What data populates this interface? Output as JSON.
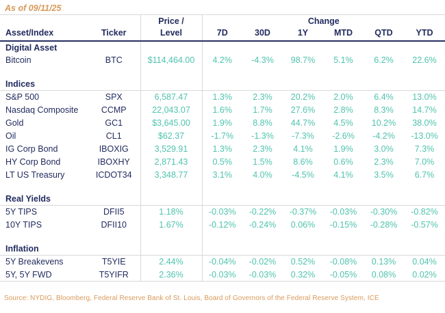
{
  "meta": {
    "as_of": "As of 09/11/25",
    "source": "Source: NYDIG, Bloomberg, Federal Reserve Bank of St. Louis, Board of Governors of the Federal Reserve System, ICE"
  },
  "colors": {
    "navy_text": "#222b5e",
    "teal_value": "#4fc3ae",
    "orange_note": "#d8995a",
    "gridline": "#d8d8d8"
  },
  "table": {
    "headers": {
      "asset": "Asset/Index",
      "ticker": "Ticker",
      "price_line1": "Price /",
      "price_line2": "Level",
      "change": "Change",
      "periods": [
        "7D",
        "30D",
        "1Y",
        "MTD",
        "QTD",
        "YTD"
      ]
    },
    "sections": [
      {
        "label": "Digital Asset",
        "underline": false,
        "rows": [
          {
            "asset": "Bitcoin",
            "ticker": "BTC",
            "price": "$114,464.00",
            "changes": [
              "4.2%",
              "-4.3%",
              "98.7%",
              "5.1%",
              "6.2%",
              "22.6%"
            ]
          }
        ]
      },
      {
        "label": "Indices",
        "underline": true,
        "rows": [
          {
            "asset": "S&P 500",
            "ticker": "SPX",
            "price": "6,587.47",
            "changes": [
              "1.3%",
              "2.3%",
              "20.2%",
              "2.0%",
              "6.4%",
              "13.0%"
            ]
          },
          {
            "asset": "Nasdaq Composite",
            "ticker": "CCMP",
            "price": "22,043.07",
            "changes": [
              "1.6%",
              "1.7%",
              "27.6%",
              "2.8%",
              "8.3%",
              "14.7%"
            ]
          },
          {
            "asset": "Gold",
            "ticker": "GC1",
            "price": "$3,645.00",
            "changes": [
              "1.9%",
              "8.8%",
              "44.7%",
              "4.5%",
              "10.2%",
              "38.0%"
            ]
          },
          {
            "asset": "Oil",
            "ticker": "CL1",
            "price": "$62.37",
            "changes": [
              "-1.7%",
              "-1.3%",
              "-7.3%",
              "-2.6%",
              "-4.2%",
              "-13.0%"
            ]
          },
          {
            "asset": "IG Corp Bond",
            "ticker": "IBOXIG",
            "price": "3,529.91",
            "changes": [
              "1.3%",
              "2.3%",
              "4.1%",
              "1.9%",
              "3.0%",
              "7.3%"
            ]
          },
          {
            "asset": "HY Corp Bond",
            "ticker": "IBOXHY",
            "price": "2,871.43",
            "changes": [
              "0.5%",
              "1.5%",
              "8.6%",
              "0.6%",
              "2.3%",
              "7.0%"
            ]
          },
          {
            "asset": "LT US Treasury",
            "ticker": "ICDOT34",
            "price": "3,348.77",
            "changes": [
              "3.1%",
              "4.0%",
              "-4.5%",
              "4.1%",
              "3.5%",
              "6.7%"
            ]
          }
        ]
      },
      {
        "label": "Real Yields",
        "underline": true,
        "rows": [
          {
            "asset": "5Y TIPS",
            "ticker": "DFII5",
            "price": "1.18%",
            "changes": [
              "-0.03%",
              "-0.22%",
              "-0.37%",
              "-0.03%",
              "-0.30%",
              "-0.82%"
            ]
          },
          {
            "asset": "10Y TIPS",
            "ticker": "DFII10",
            "price": "1.67%",
            "changes": [
              "-0.12%",
              "-0.24%",
              "0.06%",
              "-0.15%",
              "-0.28%",
              "-0.57%"
            ]
          }
        ]
      },
      {
        "label": "Inflation",
        "underline": true,
        "rows": [
          {
            "asset": "5Y Breakevens",
            "ticker": "T5YIE",
            "price": "2.44%",
            "changes": [
              "-0.04%",
              "-0.02%",
              "0.52%",
              "-0.08%",
              "0.13%",
              "0.04%"
            ]
          },
          {
            "asset": "5Y, 5Y FWD",
            "ticker": "T5YIFR",
            "price": "2.36%",
            "changes": [
              "-0.03%",
              "-0.03%",
              "0.32%",
              "-0.05%",
              "0.08%",
              "0.02%"
            ]
          }
        ]
      }
    ]
  }
}
